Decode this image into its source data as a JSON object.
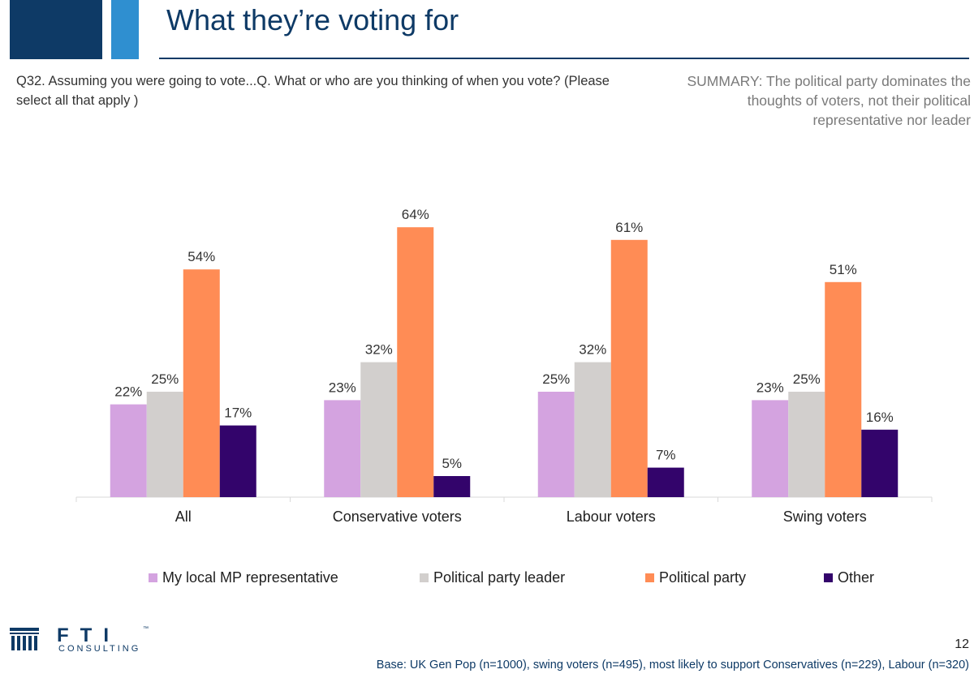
{
  "header": {
    "title": "What they’re voting for"
  },
  "question": "Q32. Assuming you were going to vote...Q. What or who are you thinking of when you vote? (Please select all that apply )",
  "summary": "SUMMARY: The political party dominates the thoughts of voters, not their political representative nor leader",
  "chart_data": {
    "type": "bar",
    "categories": [
      "All",
      "Conservative voters",
      "Labour voters",
      "Swing voters"
    ],
    "series": [
      {
        "name": "My local MP representative",
        "color": "#d4a3e0",
        "values": [
          22,
          23,
          25,
          23
        ]
      },
      {
        "name": "Political party leader",
        "color": "#d2cfcd",
        "values": [
          25,
          32,
          32,
          25
        ]
      },
      {
        "name": "Political party",
        "color": "#ff8c55",
        "values": [
          54,
          64,
          61,
          51
        ]
      },
      {
        "name": "Other",
        "color": "#33046b",
        "values": [
          17,
          5,
          7,
          16
        ]
      }
    ],
    "value_suffix": "%",
    "ylim": [
      0,
      70
    ],
    "grid": false,
    "legend_position": "bottom"
  },
  "footer": {
    "logo_letters": "FTI",
    "logo_sub": "CONSULTING",
    "logo_tm": "™",
    "page_number": "12",
    "base": "Base: UK Gen Pop (n=1000), swing voters (n=495), most likely to support Conservatives (n=229), Labour (n=320)"
  }
}
